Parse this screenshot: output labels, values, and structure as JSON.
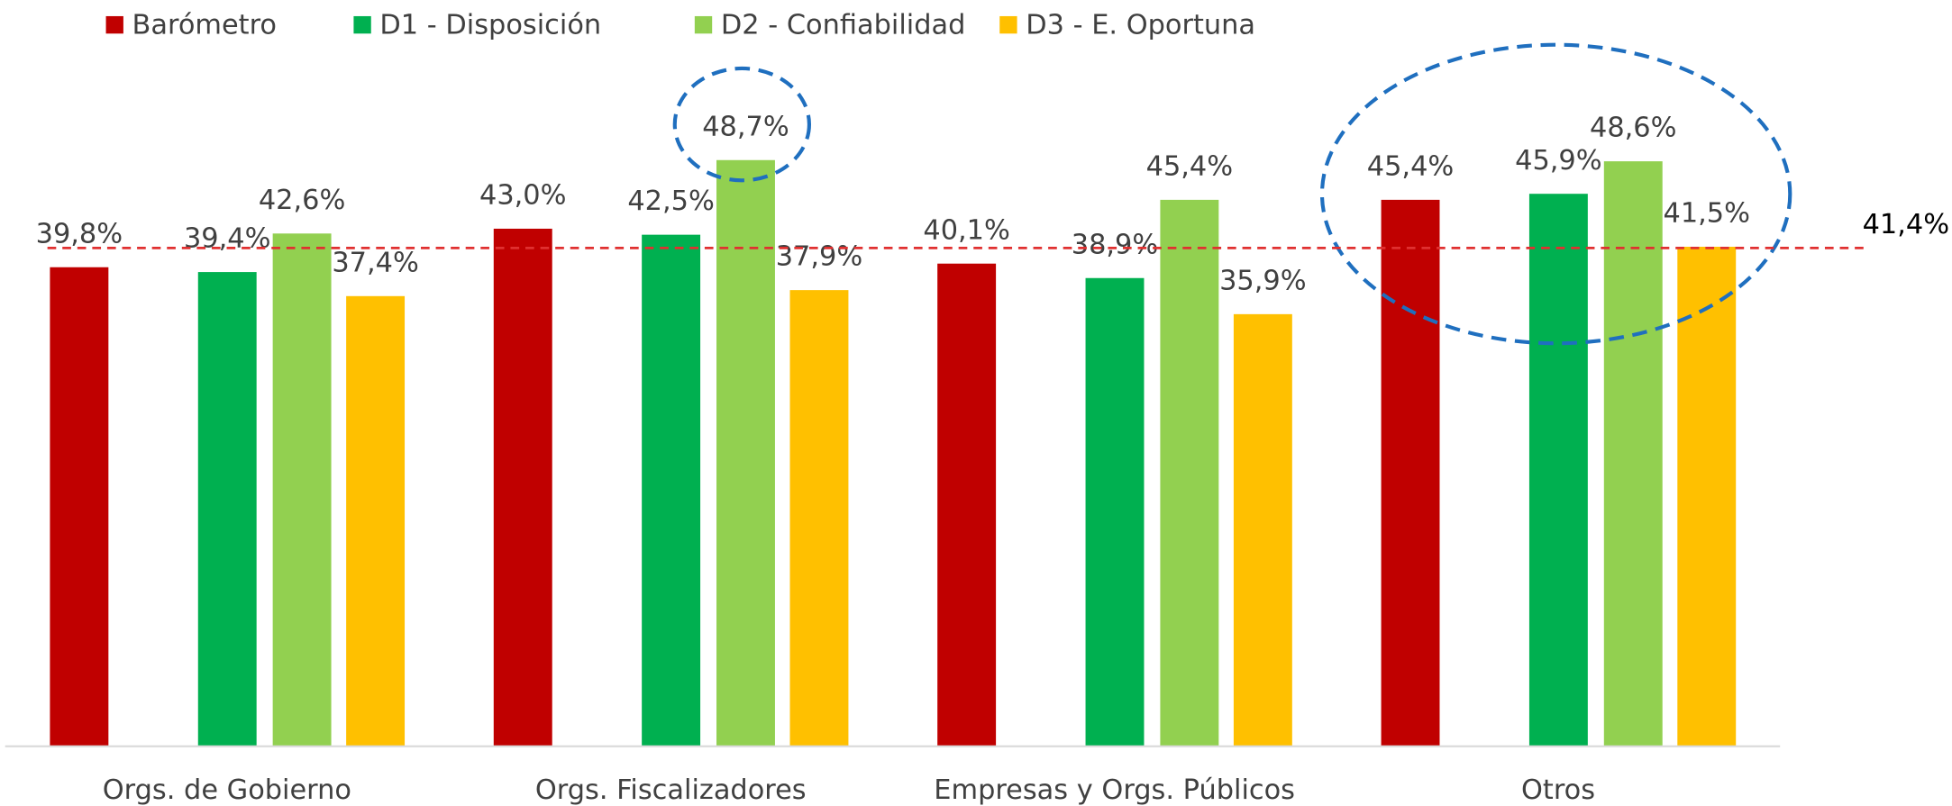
{
  "chart_data": {
    "type": "bar",
    "categories": [
      "Orgs. de Gobierno",
      "Orgs. Fiscalizadores",
      "Empresas y Orgs. Públicos",
      "Otros"
    ],
    "series": [
      {
        "name": "Barómetro",
        "color": "#c00000",
        "values": [
          39.8,
          43.0,
          40.1,
          45.4
        ],
        "value_labels": [
          "39,8%",
          "43,0%",
          "40,1%",
          "45,4%"
        ]
      },
      {
        "name": "D1 - Disposición",
        "color": "#00b050",
        "values": [
          39.4,
          42.5,
          38.9,
          45.9
        ],
        "value_labels": [
          "39,4%",
          "42,5%",
          "38,9%",
          "45,9%"
        ]
      },
      {
        "name": "D2 - Confiabilidad",
        "color": "#92d050",
        "values": [
          42.6,
          48.7,
          45.4,
          48.6
        ],
        "value_labels": [
          "42,6%",
          "48,7%",
          "45,4%",
          "48,6%"
        ]
      },
      {
        "name": "D3 - E. Oportuna",
        "color": "#ffc000",
        "values": [
          37.4,
          37.9,
          35.9,
          41.5
        ],
        "value_labels": [
          "37,4%",
          "37,9%",
          "35,9%",
          "41,5%"
        ]
      }
    ],
    "reference_line": {
      "value": 41.4,
      "label": "41,4%",
      "color": "#e03030"
    },
    "ylim": [
      0,
      62
    ],
    "legend": "top"
  }
}
